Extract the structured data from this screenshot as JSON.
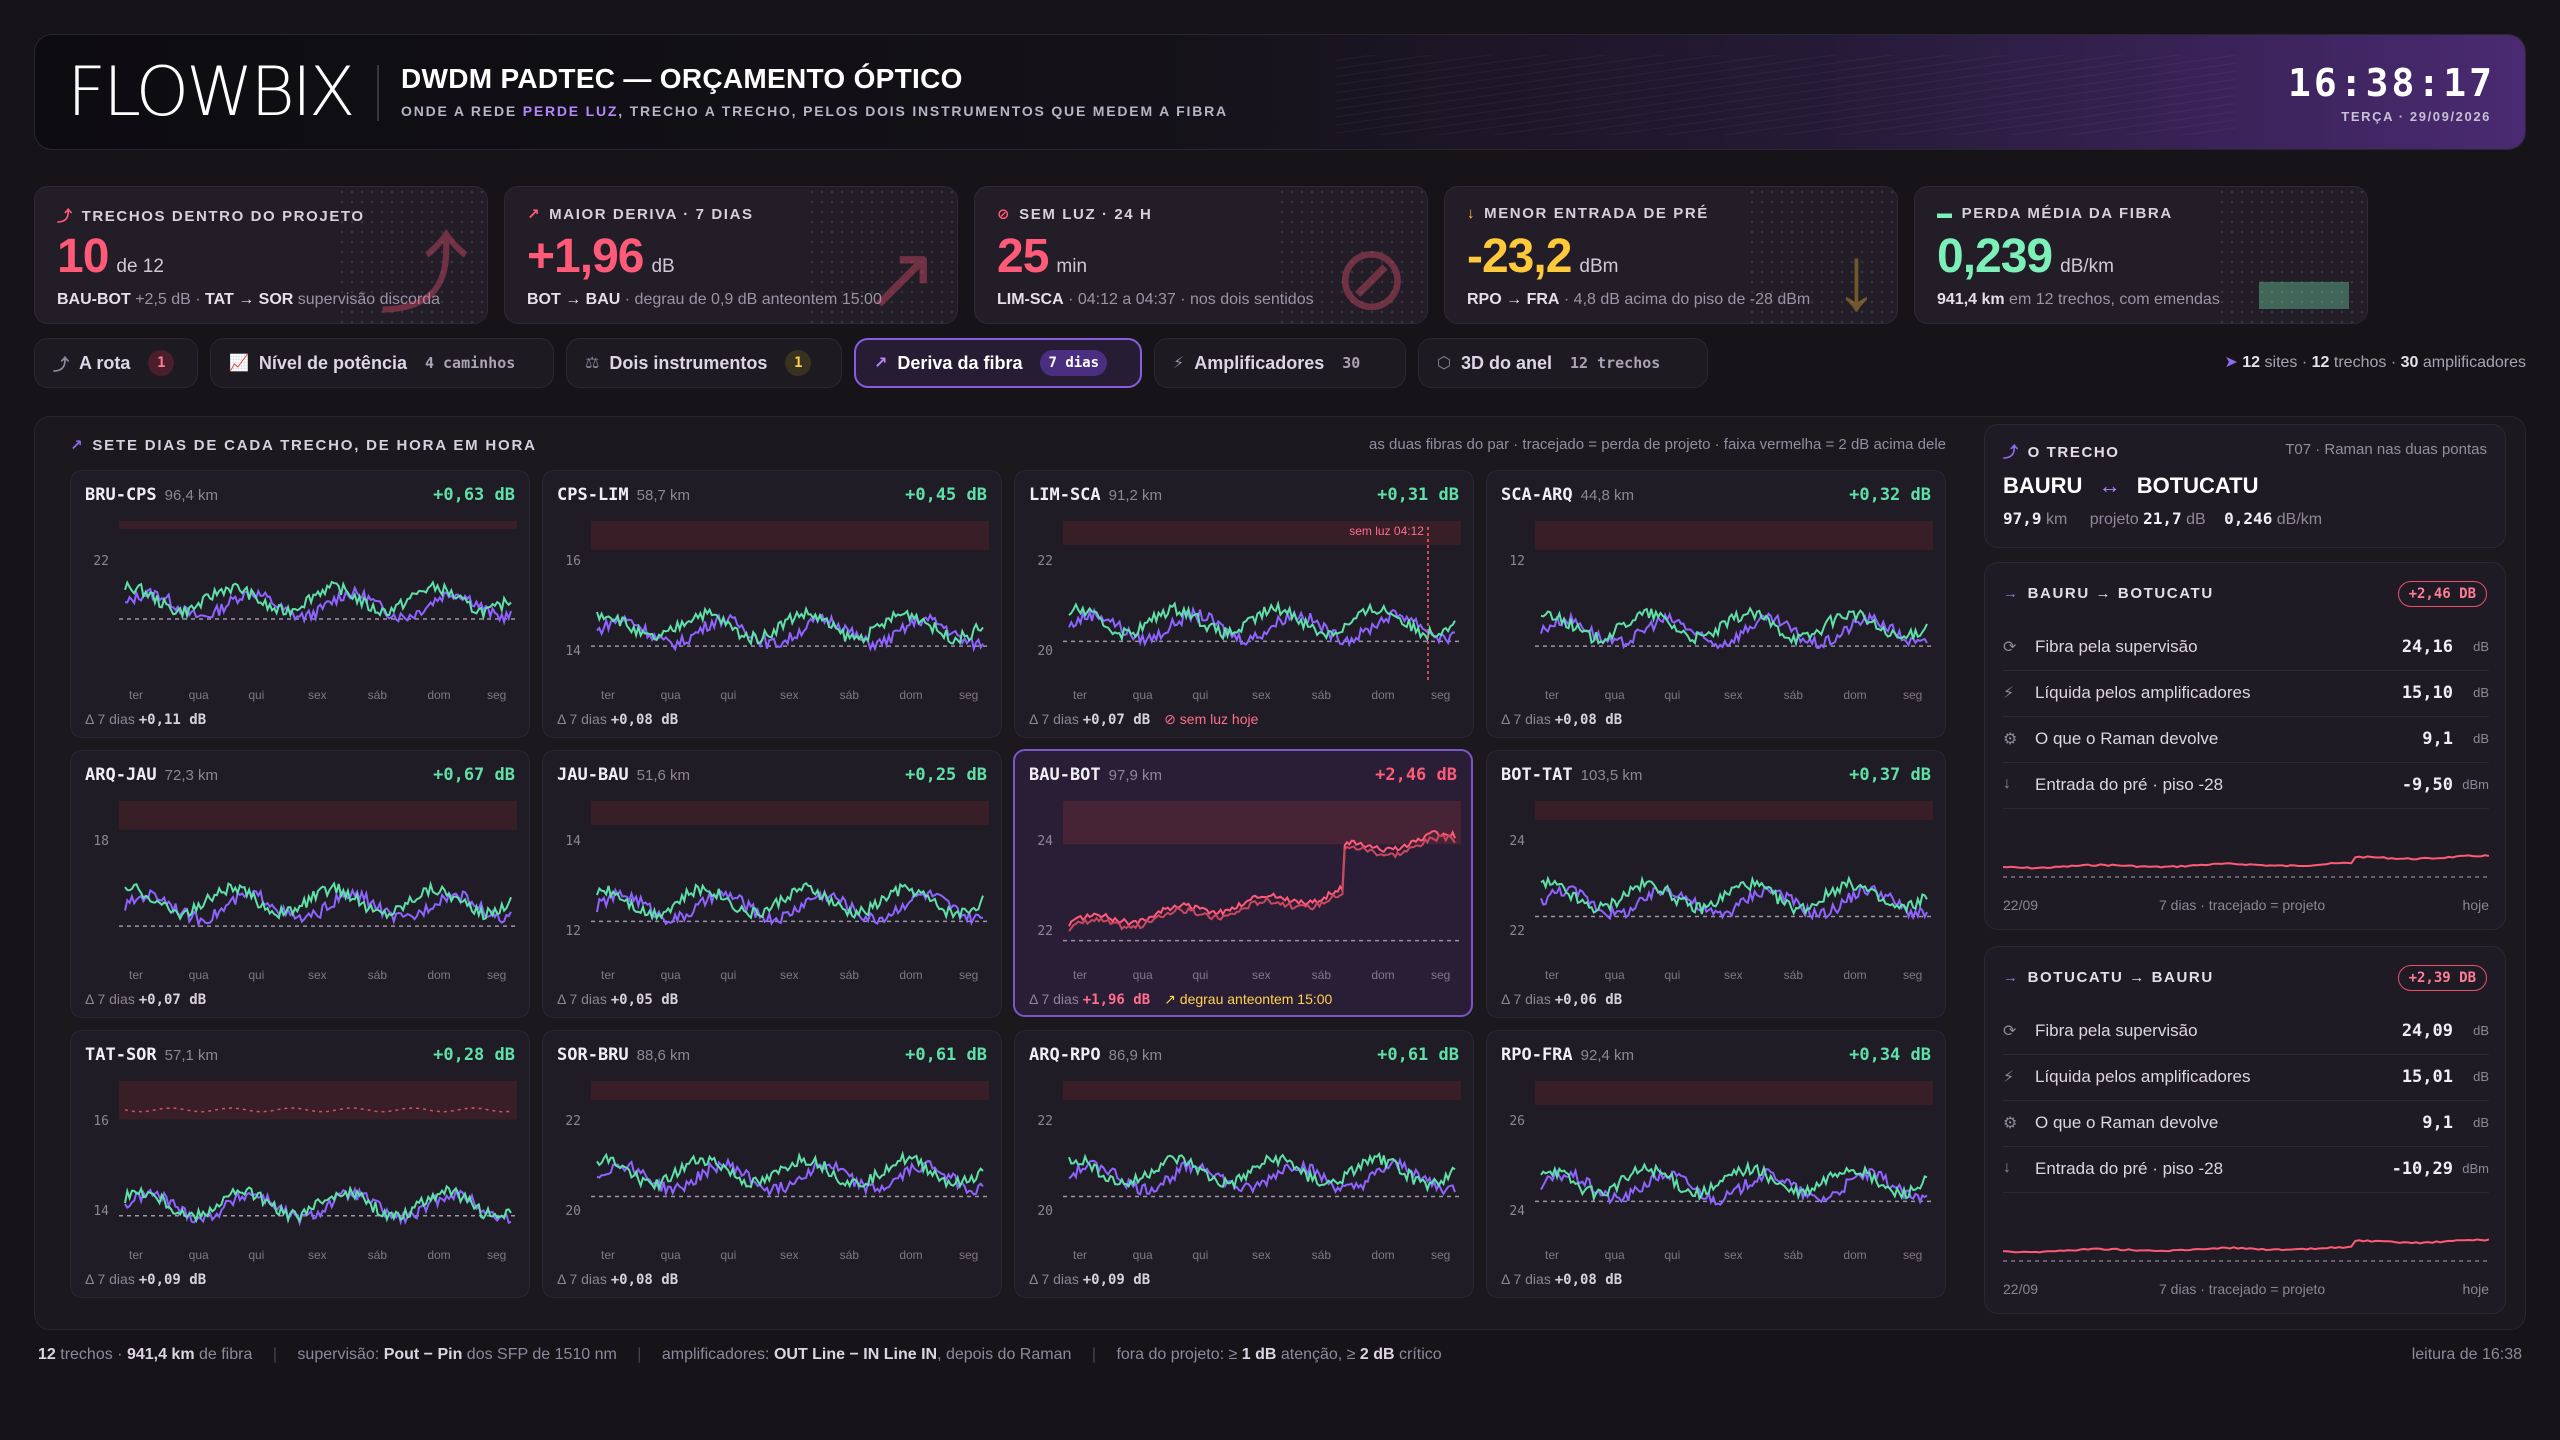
{
  "header": {
    "logo": "FLOWBIX",
    "title": "DWDM PADTEC — ORÇAMENTO ÓPTICO",
    "subtitle_pre": "ONDE A REDE ",
    "subtitle_accent": "PERDE LUZ",
    "subtitle_post": ", TRECHO A TRECHO, PELOS DOIS INSTRUMENTOS QUE MEDEM A FIBRA",
    "clock": "16:38:17",
    "date": "TERÇA · 29/09/2026"
  },
  "kpis": [
    {
      "icon": "route-icon",
      "glyph": "⤴",
      "label": "TRECHOS DENTRO DO PROJETO",
      "value": "10",
      "unit": "de 12",
      "color": "#ff5a78",
      "note_b1": "BAU-BOT",
      "note_1": " +2,5 dB · ",
      "note_b2": "TAT → SOR",
      "note_2": " supervisão discorda"
    },
    {
      "icon": "trend-up-icon",
      "glyph": "↗",
      "label": "MAIOR DERIVA · 7 DIAS",
      "value": "+1,96",
      "unit": "dB",
      "color": "#ff5a78",
      "note_b1": "BOT → BAU",
      "note_1": " · degrau de 0,9 dB anteontem 15:00",
      "note_b2": "",
      "note_2": ""
    },
    {
      "icon": "no-light-icon",
      "glyph": "⊘",
      "label": "SEM LUZ · 24 H",
      "value": "25",
      "unit": "min",
      "color": "#ff5a78",
      "note_b1": "LIM-SCA",
      "note_1": " · 04:12 a 04:37 · nos dois sentidos",
      "note_b2": "",
      "note_2": ""
    },
    {
      "icon": "arrow-down-icon",
      "glyph": "↓",
      "label": "MENOR ENTRADA DE PRÉ",
      "value": "-23,2",
      "unit": "dBm",
      "color": "#ffc93c",
      "note_b1": "RPO → FRA",
      "note_1": " · 4,8 dB acima do piso de -28 dBm",
      "note_b2": "",
      "note_2": ""
    },
    {
      "icon": "ruler-icon",
      "glyph": "▬",
      "label": "PERDA MÉDIA DA FIBRA",
      "value": "0,239",
      "unit": "dB/km",
      "color": "#7cf0b8",
      "note_b1": "941,4 km",
      "note_1": " em 12 trechos, com emendas",
      "note_b2": "",
      "note_2": ""
    }
  ],
  "tabs": [
    {
      "icon": "route-icon",
      "glyph": "⤴",
      "label": "A rota",
      "badge": "1",
      "count": ""
    },
    {
      "icon": "chart-icon",
      "glyph": "📈",
      "label": "Nível de potência",
      "badge": "",
      "count": "4 caminhos"
    },
    {
      "icon": "balance-icon",
      "glyph": "⚖",
      "label": "Dois instrumentos",
      "badge": "1",
      "count": ""
    },
    {
      "icon": "trend-up-icon",
      "glyph": "↗",
      "label": "Deriva da fibra",
      "badge": "7 dias",
      "count": ""
    },
    {
      "icon": "bolt-icon",
      "glyph": "⚡",
      "label": "Amplificadores",
      "badge": "",
      "count": "30"
    },
    {
      "icon": "cube-icon",
      "glyph": "⬡",
      "label": "3D do anel",
      "badge": "",
      "count": "12 trechos"
    }
  ],
  "summary": {
    "sites": "12",
    "sites_label": "sites",
    "spans": "12",
    "spans_label": "trechos",
    "amps": "30",
    "amps_label": "amplificadores"
  },
  "panel": {
    "title": "SETE DIAS DE CADA TRECHO, DE HORA EM HORA",
    "legend": "as duas fibras do par · tracejado = perda de projeto · faixa vermelha = 2 dB acima dele"
  },
  "days": [
    "ter",
    "qua",
    "qui",
    "sex",
    "sáb",
    "dom",
    "seg"
  ],
  "spans": [
    {
      "name": "BRU-CPS",
      "km": "96,4 km",
      "delta": "+0,63 dB",
      "status": "ok",
      "ylabels": [
        "22",
        ""
      ],
      "ylim": [
        20.5,
        23.8
      ],
      "project": 21.7,
      "level": 22.0,
      "foot": "+0,11 dB",
      "note": ""
    },
    {
      "name": "CPS-LIM",
      "km": "58,7 km",
      "delta": "+0,45 dB",
      "status": "ok",
      "ylabels": [
        "16",
        "14"
      ],
      "ylim": [
        13.4,
        16.6
      ],
      "project": 14.0,
      "level": 14.3,
      "foot": "+0,08 dB",
      "note": ""
    },
    {
      "name": "LIM-SCA",
      "km": "91,2 km",
      "delta": "+0,31 dB",
      "status": "ok",
      "ylabels": [
        "22",
        "20"
      ],
      "ylim": [
        19.6,
        22.8
      ],
      "project": 20.3,
      "level": 20.6,
      "foot": "+0,07 dB",
      "note": "sem luz hoje",
      "outage": "sem luz 04:12"
    },
    {
      "name": "SCA-ARQ",
      "km": "44,8 km",
      "delta": "+0,32 dB",
      "status": "ok",
      "ylabels": [
        "12",
        ""
      ],
      "ylim": [
        10.6,
        13.8
      ],
      "project": 11.2,
      "level": 11.5,
      "foot": "+0,08 dB",
      "note": ""
    },
    {
      "name": "ARQ-JAU",
      "km": "72,3 km",
      "delta": "+0,67 dB",
      "status": "ok",
      "ylabels": [
        "18",
        ""
      ],
      "ylim": [
        16.6,
        19.8
      ],
      "project": 17.2,
      "level": 17.6,
      "foot": "+0,07 dB",
      "note": ""
    },
    {
      "name": "JAU-BAU",
      "km": "51,6 km",
      "delta": "+0,25 dB",
      "status": "ok",
      "ylabels": [
        "14",
        "12"
      ],
      "ylim": [
        11.6,
        14.8
      ],
      "project": 12.3,
      "level": 12.6,
      "foot": "+0,05 dB",
      "note": ""
    },
    {
      "name": "BAU-BOT",
      "km": "97,9 km",
      "delta": "+2,46 dB",
      "status": "bad",
      "ylabels": [
        "24",
        "22"
      ],
      "ylim": [
        21.4,
        24.6
      ],
      "project": 21.7,
      "level": 22.0,
      "foot": "+1,96 dB",
      "note": "degrau anteontem 15:00"
    },
    {
      "name": "BOT-TAT",
      "km": "103,5 km",
      "delta": "+0,37 dB",
      "status": "ok",
      "ylabels": [
        "24",
        "22"
      ],
      "ylim": [
        21.8,
        25.0
      ],
      "project": 22.6,
      "level": 22.9,
      "foot": "+0,06 dB",
      "note": ""
    },
    {
      "name": "TAT-SOR",
      "km": "57,1 km",
      "delta": "+0,28 dB",
      "status": "ok",
      "ylabels": [
        "16",
        "14"
      ],
      "ylim": [
        13.4,
        16.6
      ],
      "project": 13.8,
      "level": 14.0,
      "foot": "+0,09 dB",
      "note": "",
      "disagree": true
    },
    {
      "name": "SOR-BRU",
      "km": "88,6 km",
      "delta": "+0,61 dB",
      "status": "ok",
      "ylabels": [
        "22",
        "20"
      ],
      "ylim": [
        19.6,
        22.8
      ],
      "project": 20.4,
      "level": 20.8,
      "foot": "+0,08 dB",
      "note": ""
    },
    {
      "name": "ARQ-RPO",
      "km": "86,9 km",
      "delta": "+0,61 dB",
      "status": "ok",
      "ylabels": [
        "22",
        "20"
      ],
      "ylim": [
        19.6,
        22.8
      ],
      "project": 20.4,
      "level": 20.8,
      "foot": "+0,09 dB",
      "note": ""
    },
    {
      "name": "RPO-FRA",
      "km": "92,4 km",
      "delta": "+0,34 dB",
      "status": "ok",
      "ylabels": [
        "26",
        "24"
      ],
      "ylim": [
        23.4,
        26.6
      ],
      "project": 24.1,
      "level": 24.4,
      "foot": "+0,08 dB",
      "note": ""
    }
  ],
  "span_foot_prefix": "Δ 7 dias",
  "side": {
    "head": "O TRECHO",
    "head_note": "T07 · Raman nas duas pontas",
    "from": "BAURU",
    "arrow": "↔",
    "to": "BOTUCATU",
    "km": "97,9",
    "km_unit": "km",
    "proj_label": "projeto",
    "proj_value": "21,7",
    "proj_unit": "dB",
    "perkm": "0,246",
    "perkm_unit": "dB/km",
    "directions": [
      {
        "title": "BAURU → BOTUCATU",
        "badge": "+2,46 DB",
        "rows": [
          {
            "icon": "signal-icon",
            "glyph": "⟳",
            "label": "Fibra pela supervisão",
            "value": "24,16",
            "unit": "dB"
          },
          {
            "icon": "bolt-icon",
            "glyph": "⚡",
            "label": "Líquida pelos amplificadores",
            "value": "15,10",
            "unit": "dB"
          },
          {
            "icon": "gear-icon",
            "glyph": "⚙",
            "label": "O que o Raman devolve",
            "value": "9,1",
            "unit": "dB"
          },
          {
            "icon": "arrow-down-icon",
            "glyph": "↓",
            "label": "Entrada do pré · piso -28",
            "value": "-9,50",
            "unit": "dBm"
          }
        ],
        "foot_left": "22/09",
        "foot_mid": "7 dias · tracejado = projeto",
        "foot_right": "hoje"
      },
      {
        "title": "BOTUCATU → BAURU",
        "badge": "+2,39 DB",
        "rows": [
          {
            "icon": "signal-icon",
            "glyph": "⟳",
            "label": "Fibra pela supervisão",
            "value": "24,09",
            "unit": "dB"
          },
          {
            "icon": "bolt-icon",
            "glyph": "⚡",
            "label": "Líquida pelos amplificadores",
            "value": "15,01",
            "unit": "dB"
          },
          {
            "icon": "gear-icon",
            "glyph": "⚙",
            "label": "O que o Raman devolve",
            "value": "9,1",
            "unit": "dB"
          },
          {
            "icon": "arrow-down-icon",
            "glyph": "↓",
            "label": "Entrada do pré · piso -28",
            "value": "-10,29",
            "unit": "dBm"
          }
        ],
        "foot_left": "22/09",
        "foot_mid": "7 dias · tracejado = projeto",
        "foot_right": "hoje"
      }
    ]
  },
  "footer": {
    "p1_b": "12",
    "p1": " trechos · ",
    "p1_b2": "941,4 km",
    "p1_2": " de fibra",
    "p2": "supervisão: ",
    "p2_b": "Pout − Pin",
    "p2_2": " dos SFP de 1510 nm",
    "p3": "amplificadores: ",
    "p3_b": "OUT Line − IN Line IN",
    "p3_2": ", depois do Raman",
    "p4": "fora do projeto: ≥ ",
    "p4_b": "1 dB",
    "p4_2": " atenção, ≥ ",
    "p4_b2": "2 dB",
    "p4_3": " crítico",
    "right": "leitura de 16:38"
  },
  "colors": {
    "fiber_a": "#8e63ff",
    "fiber_b": "#5fe0a8",
    "bad": "#ff5a78",
    "ok": "#5fe0a8",
    "band": "#3a1f28"
  }
}
